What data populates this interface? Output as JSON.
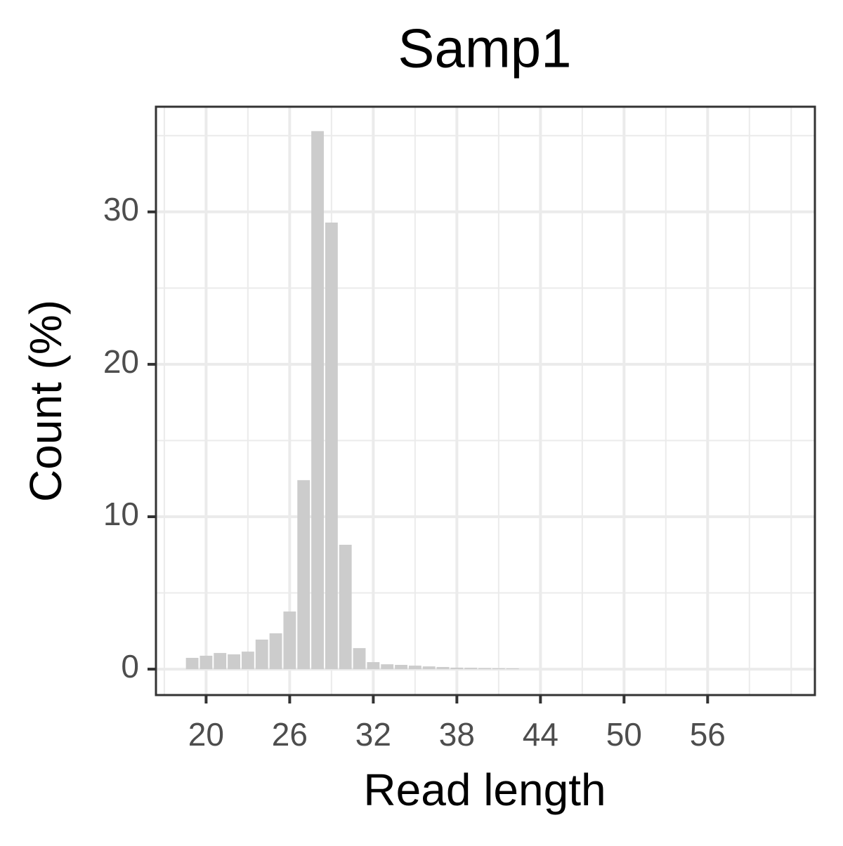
{
  "chart_data": {
    "type": "bar",
    "title": "Samp1",
    "x_label": "Read length",
    "y_label": "Count (%)",
    "x": [
      19,
      20,
      21,
      22,
      23,
      24,
      25,
      26,
      27,
      28,
      29,
      30,
      31,
      32,
      33,
      34,
      35,
      36,
      37,
      38,
      39,
      40,
      41,
      42
    ],
    "values": [
      0.74,
      0.88,
      1.06,
      0.97,
      1.15,
      1.94,
      2.35,
      3.78,
      12.4,
      35.3,
      29.3,
      8.16,
      1.38,
      0.46,
      0.32,
      0.28,
      0.23,
      0.18,
      0.14,
      0.1,
      0.09,
      0.07,
      0.06,
      0.05
    ],
    "color": "#cccccc",
    "xlim": [
      16.4,
      63.7
    ],
    "xticks": [
      20,
      26,
      32,
      38,
      44,
      50,
      56
    ],
    "x_minor_ticks": [
      17,
      23,
      29,
      35,
      41,
      47,
      53,
      59,
      62
    ],
    "ylim": [
      -1.7,
      36.9
    ],
    "yticks": [
      0,
      10,
      20,
      30
    ],
    "y_minor_ticks": [
      5,
      15,
      25,
      35
    ],
    "grid": true
  }
}
